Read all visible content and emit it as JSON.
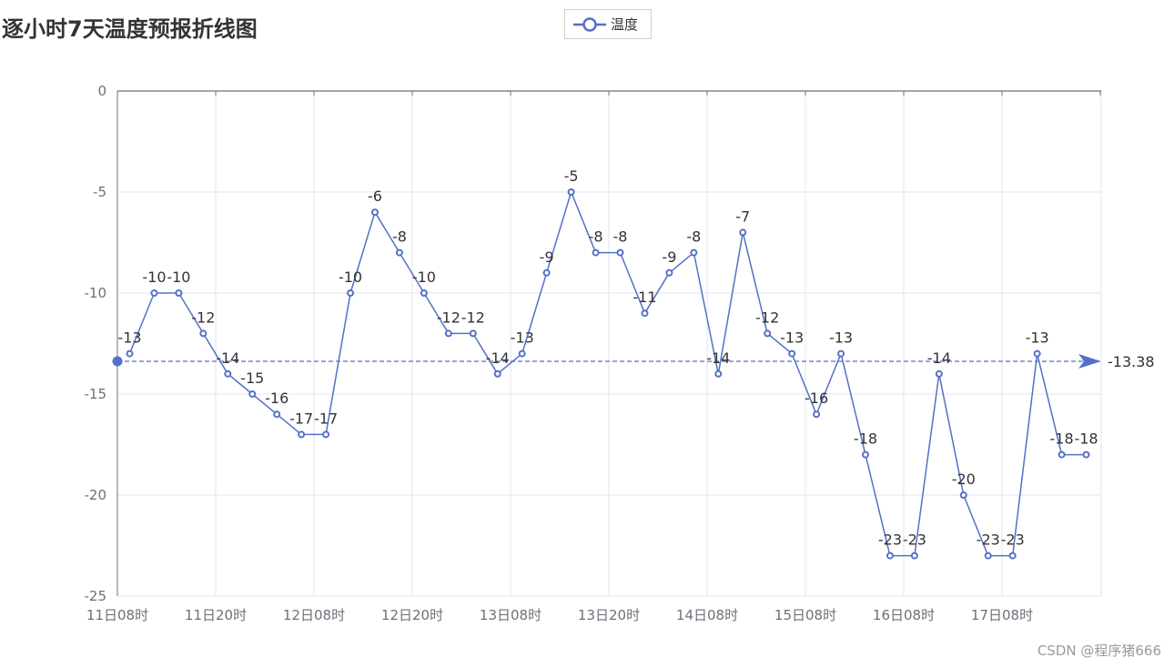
{
  "title": "逐小时7天温度预报折线图",
  "legend": {
    "label": "温度"
  },
  "watermark": "CSDN @程序猪666",
  "colors": {
    "series": "#5470c6",
    "grid": "#e0e6f1",
    "axis": "#6e7079",
    "text": "#333333"
  },
  "chart_data": {
    "type": "line",
    "title": "逐小时7天温度预报折线图",
    "x_ticks": [
      "11日08时",
      "11日20时",
      "12日08时",
      "12日20时",
      "13日08时",
      "13日20时",
      "14日08时",
      "15日08时",
      "16日08时",
      "17日08时"
    ],
    "ylim": [
      -25,
      0
    ],
    "y_ticks": [
      "0",
      "-5",
      "-10",
      "-15",
      "-20",
      "-25"
    ],
    "series": [
      {
        "name": "温度",
        "values": [
          -13,
          -10,
          -10,
          -12,
          -14,
          -15,
          -16,
          -17,
          -17,
          -10,
          -6,
          -8,
          -10,
          -12,
          -12,
          -14,
          -13,
          -9,
          -5,
          -8,
          -8,
          -11,
          -9,
          -8,
          -14,
          -7,
          -12,
          -13,
          -16,
          -13,
          -18,
          -23,
          -23,
          -14,
          -20,
          -23,
          -23,
          -13,
          -18,
          -18
        ],
        "labels": [
          "-13",
          "-10",
          "-10",
          "-12",
          "-14",
          "-15",
          "-16",
          "-17",
          "-17",
          "-10",
          "-6",
          "-8",
          "-10",
          "-12",
          "-12",
          "-14",
          "-13",
          "-9",
          "-5",
          "-8",
          "-8",
          "-11",
          "-9",
          "-8",
          "-14",
          "-7",
          "-12",
          "-13",
          "-16",
          "-13",
          "-18",
          "-23",
          "-23",
          "-14",
          "-20",
          "-23",
          "-23",
          "-13",
          "-18",
          "-18"
        ]
      }
    ],
    "mark_line": {
      "type": "average",
      "value": -13.38,
      "label": "-13.38"
    },
    "grid": true,
    "legend_position": "top-center"
  }
}
